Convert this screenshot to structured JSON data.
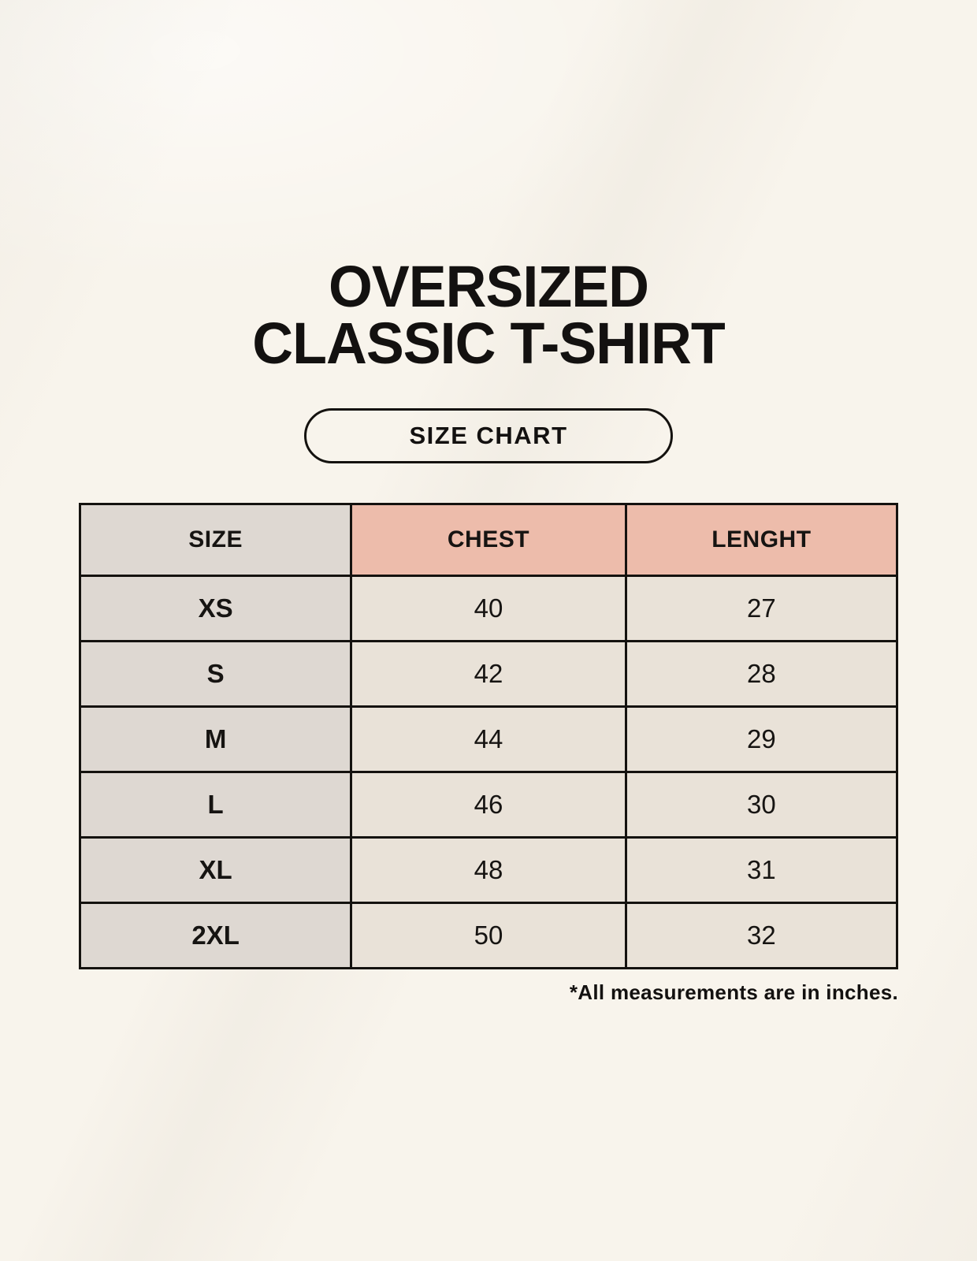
{
  "page": {
    "background_color": "#f8f4ec",
    "text_color": "#131110"
  },
  "header": {
    "title_line1": "OVERSIZED",
    "title_line2": "CLASSIC T-SHIRT",
    "badge_label": "SIZE CHART"
  },
  "table": {
    "columns": [
      "SIZE",
      "CHEST",
      "LENGHT"
    ],
    "rows": [
      {
        "size": "XS",
        "chest": "40",
        "lenght": "27"
      },
      {
        "size": "S",
        "chest": "42",
        "lenght": "28"
      },
      {
        "size": "M",
        "chest": "44",
        "lenght": "29"
      },
      {
        "size": "L",
        "chest": "46",
        "lenght": "30"
      },
      {
        "size": "XL",
        "chest": "48",
        "lenght": "31"
      },
      {
        "size": "2XL",
        "chest": "50",
        "lenght": "32"
      }
    ],
    "colors": {
      "size_column_bg": "#ded8d2",
      "header_accent_bg": "#edbcab",
      "data_cell_bg": "#e9e2d8",
      "border": "#14120f"
    }
  },
  "footnote": "*All measurements are in inches.",
  "chart_data": {
    "type": "table",
    "title": "OVERSIZED CLASSIC T-SHIRT — SIZE CHART",
    "columns": [
      "SIZE",
      "CHEST",
      "LENGHT"
    ],
    "rows": [
      [
        "XS",
        40,
        27
      ],
      [
        "S",
        42,
        28
      ],
      [
        "M",
        44,
        29
      ],
      [
        "L",
        46,
        30
      ],
      [
        "XL",
        48,
        31
      ],
      [
        "2XL",
        50,
        32
      ]
    ],
    "note": "*All measurements are in inches."
  }
}
